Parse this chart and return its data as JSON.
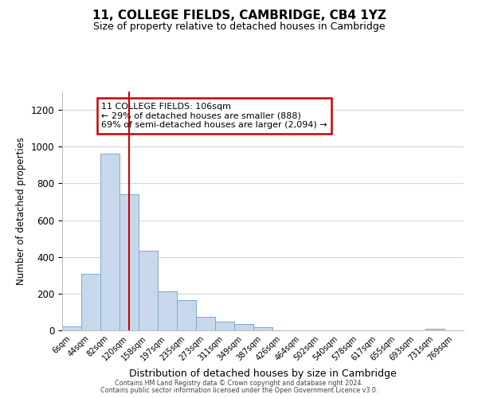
{
  "title": "11, COLLEGE FIELDS, CAMBRIDGE, CB4 1YZ",
  "subtitle": "Size of property relative to detached houses in Cambridge",
  "xlabel": "Distribution of detached houses by size in Cambridge",
  "ylabel": "Number of detached properties",
  "bar_color": "#c8d8ec",
  "bar_edge_color": "#7aaac8",
  "annotation_line_color": "#cc0000",
  "annotation_box_edge_color": "#cc0000",
  "annotation_text": "11 COLLEGE FIELDS: 106sqm\n← 29% of detached houses are smaller (888)\n69% of semi-detached houses are larger (2,094) →",
  "bin_labels": [
    "6sqm",
    "44sqm",
    "82sqm",
    "120sqm",
    "158sqm",
    "197sqm",
    "235sqm",
    "273sqm",
    "311sqm",
    "349sqm",
    "387sqm",
    "426sqm",
    "464sqm",
    "502sqm",
    "540sqm",
    "578sqm",
    "617sqm",
    "655sqm",
    "693sqm",
    "731sqm",
    "769sqm"
  ],
  "bar_heights": [
    20,
    308,
    960,
    742,
    432,
    211,
    163,
    72,
    47,
    35,
    18,
    0,
    0,
    0,
    0,
    0,
    0,
    0,
    0,
    10,
    0
  ],
  "property_line_x": 3.0,
  "ylim": [
    0,
    1300
  ],
  "yticks": [
    0,
    200,
    400,
    600,
    800,
    1000,
    1200
  ],
  "footer_line1": "Contains HM Land Registry data © Crown copyright and database right 2024.",
  "footer_line2": "Contains public sector information licensed under the Open Government Licence v3.0.",
  "background_color": "#ffffff",
  "grid_color": "#d0d8e8"
}
